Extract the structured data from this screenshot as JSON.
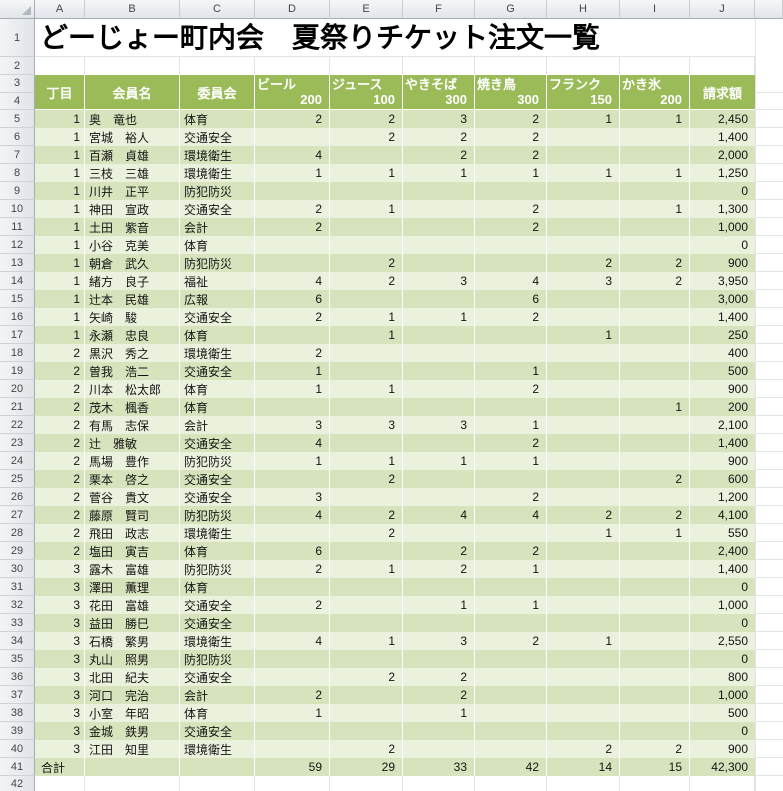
{
  "sheet": {
    "title": "どーじょー町内会　夏祭りチケット注文一覧",
    "column_letters": [
      "A",
      "B",
      "C",
      "D",
      "E",
      "F",
      "G",
      "H",
      "I",
      "J"
    ],
    "gutter_labels": {
      "r1": "1",
      "r2": "2",
      "r3": "3",
      "r4": "4",
      "r42": "42"
    },
    "header": {
      "chome": "丁目",
      "member": "会員名",
      "committee": "委員会",
      "amount": "請求額",
      "products": [
        {
          "name": "ビール",
          "price": "200"
        },
        {
          "name": "ジュース",
          "price": "100"
        },
        {
          "name": "やきそば",
          "price": "300"
        },
        {
          "name": "焼き鳥",
          "price": "300"
        },
        {
          "name": "フランク",
          "price": "150"
        },
        {
          "name": "かき氷",
          "price": "200"
        }
      ]
    },
    "rows": [
      {
        "row": 5,
        "chome": "1",
        "name": "奥　竜也",
        "committee": "体育",
        "q": [
          "2",
          "2",
          "3",
          "2",
          "1",
          "1"
        ],
        "amount": "2,450"
      },
      {
        "row": 6,
        "chome": "1",
        "name": "宮城　裕人",
        "committee": "交通安全",
        "q": [
          "",
          "2",
          "2",
          "2",
          "",
          ""
        ],
        "amount": "1,400"
      },
      {
        "row": 7,
        "chome": "1",
        "name": "百瀬　貞雄",
        "committee": "環境衛生",
        "q": [
          "4",
          "",
          "2",
          "2",
          "",
          ""
        ],
        "amount": "2,000"
      },
      {
        "row": 8,
        "chome": "1",
        "name": "三枝　三雄",
        "committee": "環境衛生",
        "q": [
          "1",
          "1",
          "1",
          "1",
          "1",
          "1"
        ],
        "amount": "1,250"
      },
      {
        "row": 9,
        "chome": "1",
        "name": "川井　正平",
        "committee": "防犯防災",
        "q": [
          "",
          "",
          "",
          "",
          "",
          ""
        ],
        "amount": "0"
      },
      {
        "row": 10,
        "chome": "1",
        "name": "神田　宣政",
        "committee": "交通安全",
        "q": [
          "2",
          "1",
          "",
          "2",
          "",
          "1"
        ],
        "amount": "1,300"
      },
      {
        "row": 11,
        "chome": "1",
        "name": "土田　紫音",
        "committee": "会計",
        "q": [
          "2",
          "",
          "",
          "2",
          "",
          ""
        ],
        "amount": "1,000"
      },
      {
        "row": 12,
        "chome": "1",
        "name": "小谷　克美",
        "committee": "体育",
        "q": [
          "",
          "",
          "",
          "",
          "",
          ""
        ],
        "amount": "0"
      },
      {
        "row": 13,
        "chome": "1",
        "name": "朝倉　武久",
        "committee": "防犯防災",
        "q": [
          "",
          "2",
          "",
          "",
          "2",
          "2"
        ],
        "amount": "900"
      },
      {
        "row": 14,
        "chome": "1",
        "name": "緒方　良子",
        "committee": "福祉",
        "q": [
          "4",
          "2",
          "3",
          "4",
          "3",
          "2"
        ],
        "amount": "3,950"
      },
      {
        "row": 15,
        "chome": "1",
        "name": "辻本　民雄",
        "committee": "広報",
        "q": [
          "6",
          "",
          "",
          "6",
          "",
          ""
        ],
        "amount": "3,000"
      },
      {
        "row": 16,
        "chome": "1",
        "name": "矢崎　駿",
        "committee": "交通安全",
        "q": [
          "2",
          "1",
          "1",
          "2",
          "",
          ""
        ],
        "amount": "1,400"
      },
      {
        "row": 17,
        "chome": "1",
        "name": "永瀬　忠良",
        "committee": "体育",
        "q": [
          "",
          "1",
          "",
          "",
          "1",
          ""
        ],
        "amount": "250"
      },
      {
        "row": 18,
        "chome": "2",
        "name": "黒沢　秀之",
        "committee": "環境衛生",
        "q": [
          "2",
          "",
          "",
          "",
          "",
          ""
        ],
        "amount": "400"
      },
      {
        "row": 19,
        "chome": "2",
        "name": "曽我　浩二",
        "committee": "交通安全",
        "q": [
          "1",
          "",
          "",
          "1",
          "",
          ""
        ],
        "amount": "500"
      },
      {
        "row": 20,
        "chome": "2",
        "name": "川本　松太郎",
        "committee": "体育",
        "q": [
          "1",
          "1",
          "",
          "2",
          "",
          ""
        ],
        "amount": "900"
      },
      {
        "row": 21,
        "chome": "2",
        "name": "茂木　楓香",
        "committee": "体育",
        "q": [
          "",
          "",
          "",
          "",
          "",
          "1"
        ],
        "amount": "200"
      },
      {
        "row": 22,
        "chome": "2",
        "name": "有馬　志保",
        "committee": "会計",
        "q": [
          "3",
          "3",
          "3",
          "1",
          "",
          ""
        ],
        "amount": "2,100"
      },
      {
        "row": 23,
        "chome": "2",
        "name": "辻　雅敏",
        "committee": "交通安全",
        "q": [
          "4",
          "",
          "",
          "2",
          "",
          ""
        ],
        "amount": "1,400"
      },
      {
        "row": 24,
        "chome": "2",
        "name": "馬場　豊作",
        "committee": "防犯防災",
        "q": [
          "1",
          "1",
          "1",
          "1",
          "",
          ""
        ],
        "amount": "900"
      },
      {
        "row": 25,
        "chome": "2",
        "name": "栗本　啓之",
        "committee": "交通安全",
        "q": [
          "",
          "2",
          "",
          "",
          "",
          "2"
        ],
        "amount": "600"
      },
      {
        "row": 26,
        "chome": "2",
        "name": "菅谷　貴文",
        "committee": "交通安全",
        "q": [
          "3",
          "",
          "",
          "2",
          "",
          ""
        ],
        "amount": "1,200"
      },
      {
        "row": 27,
        "chome": "2",
        "name": "藤原　賢司",
        "committee": "防犯防災",
        "q": [
          "4",
          "2",
          "4",
          "4",
          "2",
          "2"
        ],
        "amount": "4,100"
      },
      {
        "row": 28,
        "chome": "2",
        "name": "飛田　政志",
        "committee": "環境衛生",
        "q": [
          "",
          "2",
          "",
          "",
          "1",
          "1"
        ],
        "amount": "550"
      },
      {
        "row": 29,
        "chome": "2",
        "name": "塩田　寅吉",
        "committee": "体育",
        "q": [
          "6",
          "",
          "2",
          "2",
          "",
          ""
        ],
        "amount": "2,400"
      },
      {
        "row": 30,
        "chome": "3",
        "name": "露木　富雄",
        "committee": "防犯防災",
        "q": [
          "2",
          "1",
          "2",
          "1",
          "",
          ""
        ],
        "amount": "1,400"
      },
      {
        "row": 31,
        "chome": "3",
        "name": "澤田　薫理",
        "committee": "体育",
        "q": [
          "",
          "",
          "",
          "",
          "",
          ""
        ],
        "amount": "0"
      },
      {
        "row": 32,
        "chome": "3",
        "name": "花田　富雄",
        "committee": "交通安全",
        "q": [
          "2",
          "",
          "1",
          "1",
          "",
          ""
        ],
        "amount": "1,000"
      },
      {
        "row": 33,
        "chome": "3",
        "name": "益田　勝巳",
        "committee": "交通安全",
        "q": [
          "",
          "",
          "",
          "",
          "",
          ""
        ],
        "amount": "0"
      },
      {
        "row": 34,
        "chome": "3",
        "name": "石橋　繁男",
        "committee": "環境衛生",
        "q": [
          "4",
          "1",
          "3",
          "2",
          "1",
          ""
        ],
        "amount": "2,550"
      },
      {
        "row": 35,
        "chome": "3",
        "name": "丸山　照男",
        "committee": "防犯防災",
        "q": [
          "",
          "",
          "",
          "",
          "",
          ""
        ],
        "amount": "0"
      },
      {
        "row": 36,
        "chome": "3",
        "name": "北田　紀夫",
        "committee": "交通安全",
        "q": [
          "",
          "2",
          "2",
          "",
          "",
          ""
        ],
        "amount": "800"
      },
      {
        "row": 37,
        "chome": "3",
        "name": "河口　完治",
        "committee": "会計",
        "q": [
          "2",
          "",
          "2",
          "",
          "",
          ""
        ],
        "amount": "1,000"
      },
      {
        "row": 38,
        "chome": "3",
        "name": "小室　年昭",
        "committee": "体育",
        "q": [
          "1",
          "",
          "1",
          "",
          "",
          ""
        ],
        "amount": "500"
      },
      {
        "row": 39,
        "chome": "3",
        "name": "金城　鉄男",
        "committee": "交通安全",
        "q": [
          "",
          "",
          "",
          "",
          "",
          ""
        ],
        "amount": "0"
      },
      {
        "row": 40,
        "chome": "3",
        "name": "江田　知里",
        "committee": "環境衛生",
        "q": [
          "",
          "2",
          "",
          "",
          "2",
          "2"
        ],
        "amount": "900"
      }
    ],
    "total": {
      "row": 41,
      "label": "合計",
      "q": [
        "59",
        "29",
        "33",
        "42",
        "14",
        "15"
      ],
      "amount": "42,300"
    },
    "colors": {
      "header_green": "#9BBB59",
      "band_dark": "#D6E3BC",
      "band_light": "#EAF1DD",
      "total_row": "#D6E3BC",
      "header_text": "#FFFFFF",
      "gridline": "#E0E3E7"
    }
  }
}
